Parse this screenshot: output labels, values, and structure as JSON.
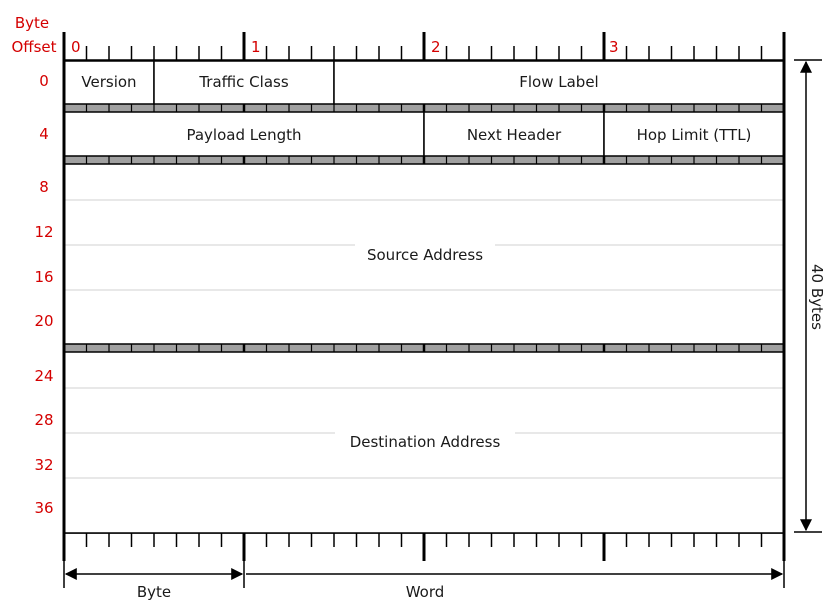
{
  "header": {
    "offset_label_line1": "Byte",
    "offset_label_line2": "Offset",
    "byte_numbers": [
      "0",
      "1",
      "2",
      "3"
    ]
  },
  "row_offsets": [
    "0",
    "4",
    "8",
    "12",
    "16",
    "20",
    "24",
    "28",
    "32",
    "36"
  ],
  "rows": [
    {
      "fields": [
        {
          "name": "Version",
          "bits": 4
        },
        {
          "name": "Traffic Class",
          "bits": 8
        },
        {
          "name": "Flow Label",
          "bits": 20
        }
      ]
    },
    {
      "fields": [
        {
          "name": "Payload Length",
          "bits": 16
        },
        {
          "name": "Next Header",
          "bits": 8
        },
        {
          "name": "Hop Limit (TTL)",
          "bits": 8
        }
      ]
    }
  ],
  "address_blocks": [
    {
      "name": "Source Address",
      "words": 4
    },
    {
      "name": "Destination Address",
      "words": 4
    }
  ],
  "total_label": "40 Bytes",
  "legend": {
    "byte_label": "Byte",
    "word_label": "Word"
  },
  "colors": {
    "offset_text": "#d40000",
    "lines": "#000000",
    "divider_fill": "#a0a0a0"
  }
}
